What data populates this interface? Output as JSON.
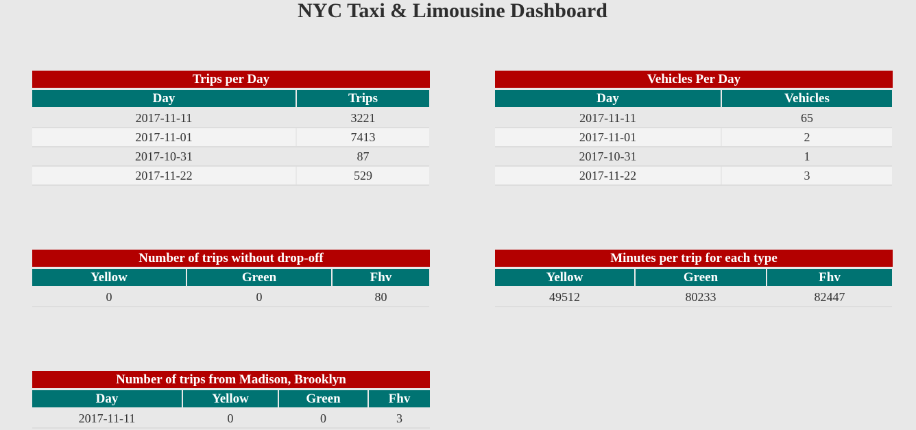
{
  "page": {
    "title": "NYC Taxi & Limousine Dashboard"
  },
  "trips_per_day": {
    "title": "Trips per Day",
    "headers": [
      "Day",
      "Trips"
    ],
    "rows": [
      [
        "2017-11-11",
        "3221"
      ],
      [
        "2017-11-01",
        "7413"
      ],
      [
        "2017-10-31",
        "87"
      ],
      [
        "2017-11-22",
        "529"
      ]
    ]
  },
  "vehicles_per_day": {
    "title": "Vehicles Per Day",
    "headers": [
      "Day",
      "Vehicles"
    ],
    "rows": [
      [
        "2017-11-11",
        "65"
      ],
      [
        "2017-11-01",
        "2"
      ],
      [
        "2017-10-31",
        "1"
      ],
      [
        "2017-11-22",
        "3"
      ]
    ]
  },
  "trips_without_dropoff": {
    "title": "Number of trips without drop-off",
    "headers": [
      "Yellow",
      "Green",
      "Fhv"
    ],
    "rows": [
      [
        "0",
        "0",
        "80"
      ]
    ]
  },
  "minutes_per_trip": {
    "title": "Minutes per trip for each type",
    "headers": [
      "Yellow",
      "Green",
      "Fhv"
    ],
    "rows": [
      [
        "49512",
        "80233",
        "82447"
      ]
    ]
  },
  "trips_from_madison": {
    "title": "Number of trips from Madison, Brooklyn",
    "headers": [
      "Day",
      "Yellow",
      "Green",
      "Fhv"
    ],
    "rows": [
      [
        "2017-11-11",
        "0",
        "0",
        "3"
      ]
    ]
  },
  "colors": {
    "background": "#e8e8e8",
    "title_bar": "#b30000",
    "header_row": "#007372",
    "row_alt": "#f3f3f3"
  }
}
